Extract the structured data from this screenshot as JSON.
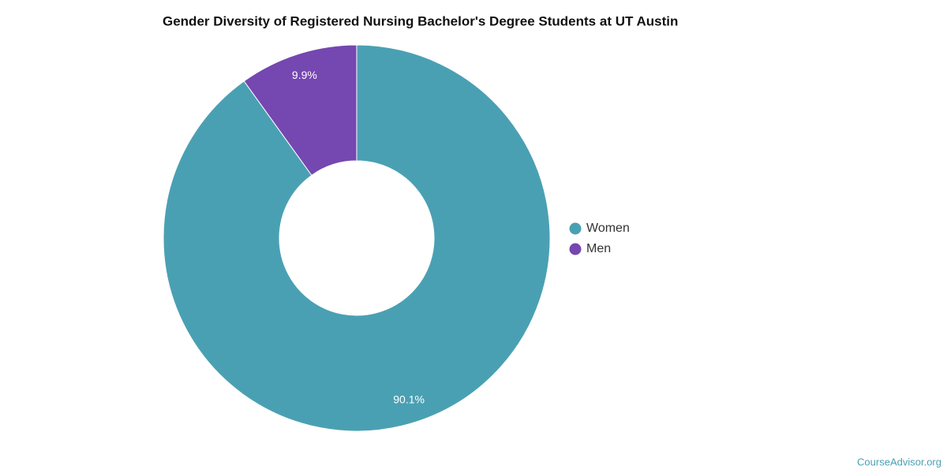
{
  "chart_data": {
    "type": "donut",
    "title": "Gender Diversity of Registered Nursing Bachelor's Degree Students at UT Austin",
    "categories": [
      "Women",
      "Men"
    ],
    "values": [
      90.1,
      9.9
    ],
    "value_labels": [
      "90.1%",
      "9.9%"
    ],
    "colors": [
      "#4aa0b3",
      "#7547b0"
    ],
    "legend": "right",
    "watermark": "CourseAdvisor.org"
  }
}
